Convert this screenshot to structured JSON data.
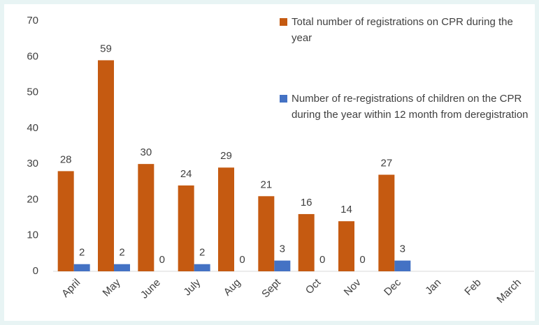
{
  "chart_data": {
    "type": "bar",
    "categories": [
      "April",
      "May",
      "June",
      "July",
      "Aug",
      "Sept",
      "Oct",
      "Nov",
      "Dec",
      "Jan",
      "Feb",
      "March"
    ],
    "series": [
      {
        "name": "Total number of registrations on CPR during the year",
        "color": "#c55a11",
        "values": [
          28,
          59,
          30,
          24,
          29,
          21,
          16,
          14,
          27,
          null,
          null,
          null
        ]
      },
      {
        "name": "Number of re-registrations of children on the CPR during the year within 12 month from deregistration",
        "color": "#4472c4",
        "values": [
          2,
          2,
          0,
          2,
          0,
          3,
          0,
          0,
          3,
          null,
          null,
          null
        ]
      }
    ],
    "ylim": [
      0,
      70
    ],
    "yticks": [
      0,
      10,
      20,
      30,
      40,
      50,
      60,
      70
    ],
    "grid": false,
    "legend": "top-right"
  }
}
